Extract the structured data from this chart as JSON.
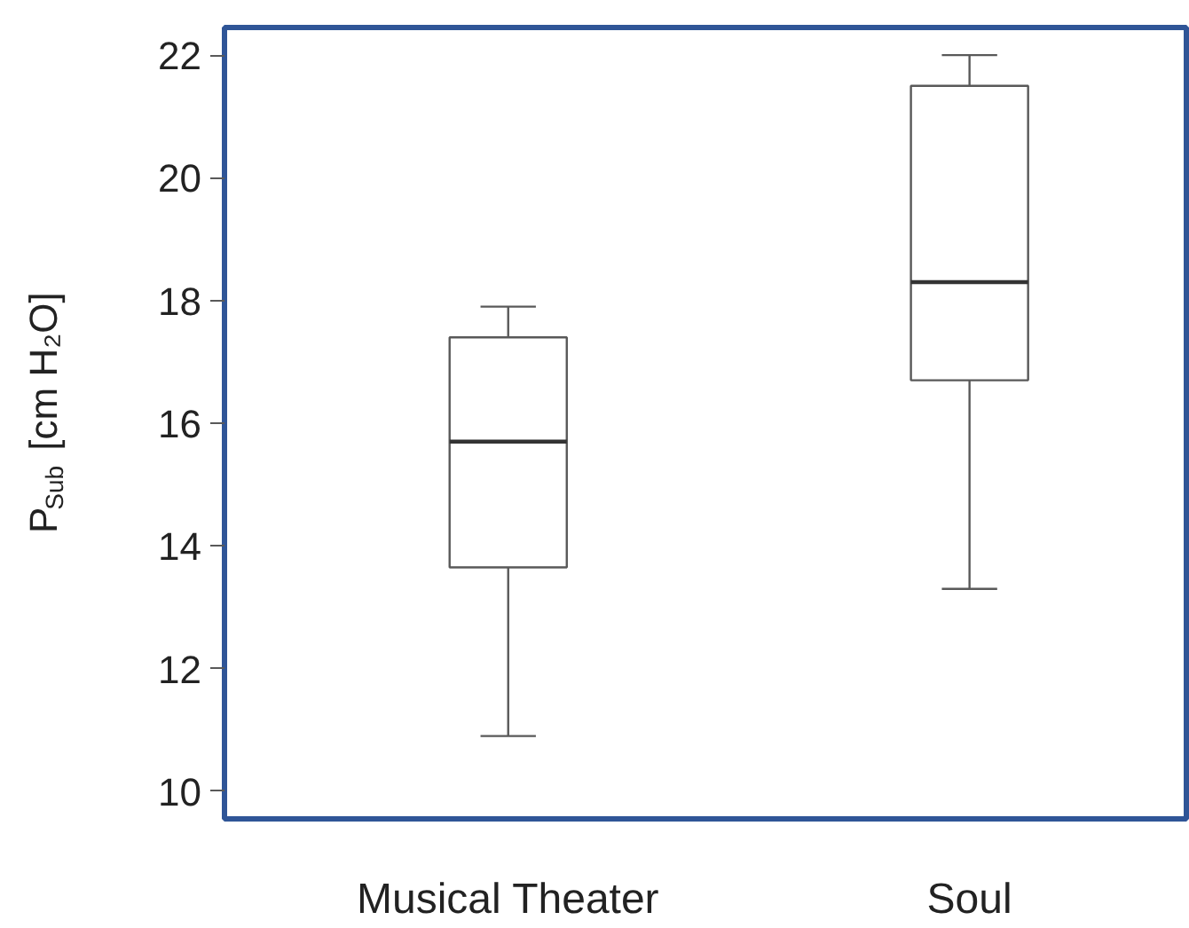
{
  "chart_data": {
    "type": "box",
    "ylabel": "P$_{Sub}$ [cm H₂O]",
    "categories": [
      "Musical Theater",
      "Soul"
    ],
    "boxes": [
      {
        "low": 10.9,
        "q1": 13.65,
        "median": 15.7,
        "q3": 17.4,
        "high": 17.9
      },
      {
        "low": 13.3,
        "q1": 16.7,
        "median": 18.3,
        "q3": 21.5,
        "high": 22.0
      }
    ],
    "ylim": [
      9.55,
      22.45
    ],
    "yticks": [
      10,
      12,
      14,
      16,
      18,
      20,
      22
    ]
  }
}
